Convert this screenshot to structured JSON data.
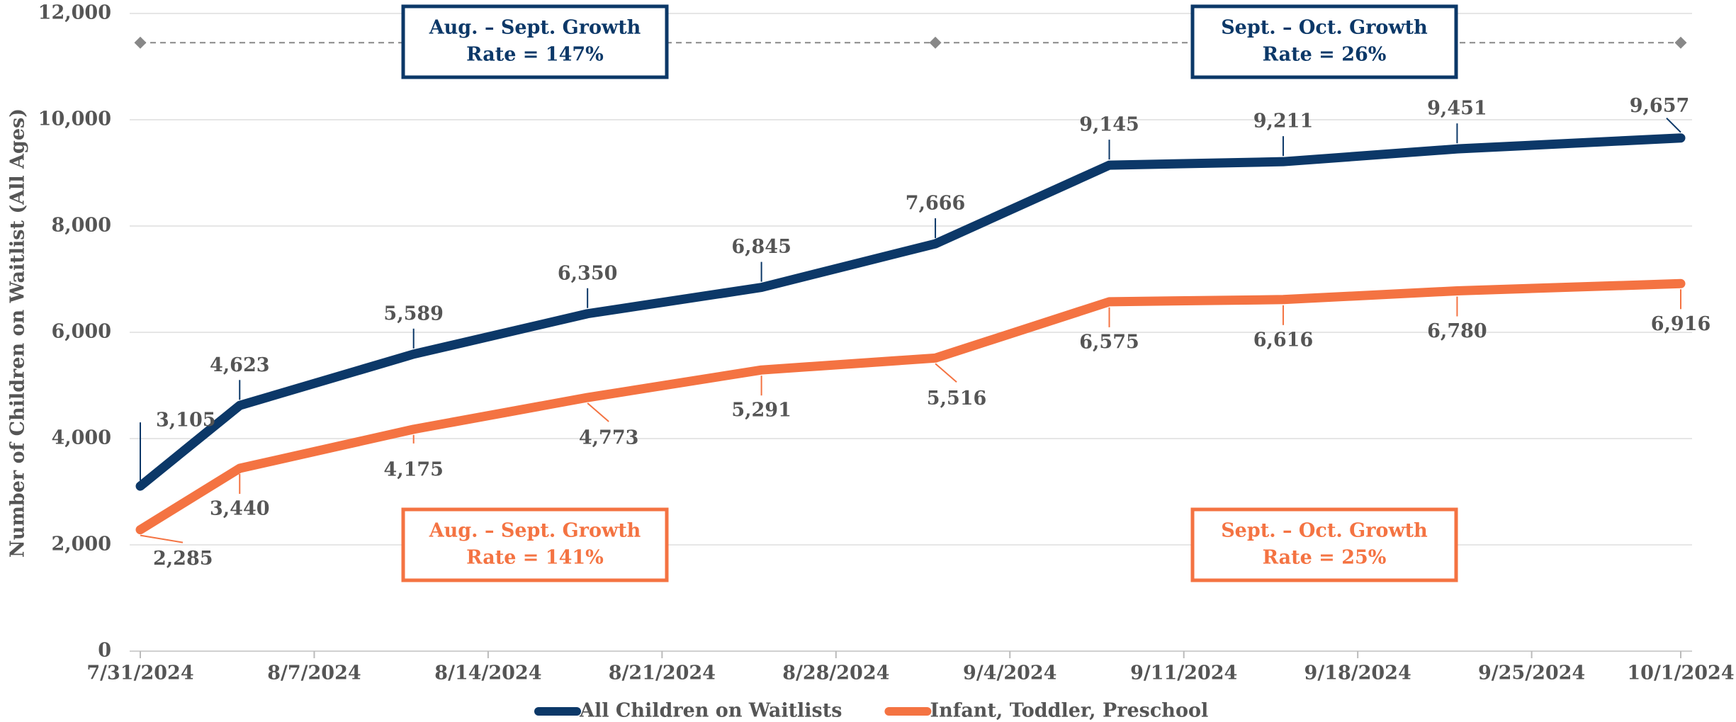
{
  "chart_data": {
    "type": "line",
    "y_label": "Number of Children on Waitlist (All Ages)",
    "x": [
      "2024-07-31",
      "2024-08-04",
      "2024-08-11",
      "2024-08-18",
      "2024-08-25",
      "2024-09-01",
      "2024-09-08",
      "2024-09-15",
      "2024-09-22",
      "2024-10-01"
    ],
    "series": [
      {
        "name": "All Children on Waitlists",
        "color": "#0c3868",
        "values": [
          3105,
          4623,
          5589,
          6350,
          6845,
          7666,
          9145,
          9211,
          9451,
          9657
        ],
        "value_labels": [
          "3,105",
          "4,623",
          "5,589",
          "6,350",
          "6,845",
          "7,666",
          "9,145",
          "9,211",
          "9,451",
          "9,657"
        ]
      },
      {
        "name": "Infant, Toddler, Preschool",
        "color": "#f47342",
        "values": [
          2285,
          3440,
          4175,
          4773,
          5291,
          5516,
          6575,
          6616,
          6780,
          6916
        ],
        "value_labels": [
          "2,285",
          "3,440",
          "4,175",
          "4,773",
          "5,291",
          "5,516",
          "6,575",
          "6,616",
          "6,780",
          "6,916"
        ]
      }
    ],
    "markers": {
      "x": [
        "2024-07-31",
        "2024-09-01",
        "2024-10-01"
      ],
      "values": [
        11450,
        11450,
        11450
      ],
      "color": "#888888"
    },
    "xlim": [
      "2024-07-31",
      "2024-10-01"
    ],
    "xticks": [
      {
        "value": "2024-07-31",
        "label": "7/31/2024"
      },
      {
        "value": "2024-08-07",
        "label": "8/7/2024"
      },
      {
        "value": "2024-08-14",
        "label": "8/14/2024"
      },
      {
        "value": "2024-08-21",
        "label": "8/21/2024"
      },
      {
        "value": "2024-08-28",
        "label": "8/28/2024"
      },
      {
        "value": "2024-09-04",
        "label": "9/4/2024"
      },
      {
        "value": "2024-09-11",
        "label": "9/11/2024"
      },
      {
        "value": "2024-09-18",
        "label": "9/18/2024"
      },
      {
        "value": "2024-09-25",
        "label": "9/25/2024"
      },
      {
        "value": "2024-10-01",
        "label": "10/1/2024"
      }
    ],
    "ylim": [
      0,
      12000
    ],
    "yticks": [
      0,
      {
        "value": 2000,
        "label": "2,000"
      },
      {
        "value": 4000,
        "label": "4,000"
      },
      {
        "value": 6000,
        "label": "6,000"
      },
      {
        "value": 8000,
        "label": "8,000"
      },
      {
        "value": 10000,
        "label": "10,000"
      },
      {
        "value": 12000,
        "label": "12,000"
      }
    ],
    "grid": true,
    "legend": "bottom",
    "annotations": [
      {
        "lines": [
          "Aug. – Sept. Growth",
          "Rate = 147%"
        ],
        "color": "#0c3868"
      },
      {
        "lines": [
          "Sept. – Oct. Growth",
          "Rate = 26%"
        ],
        "color": "#0c3868"
      },
      {
        "lines": [
          "Aug. – Sept. Growth",
          "Rate = 141%"
        ],
        "color": "#f47342"
      },
      {
        "lines": [
          "Sept. – Oct. Growth",
          "Rate = 25%"
        ],
        "color": "#f47342"
      }
    ]
  }
}
